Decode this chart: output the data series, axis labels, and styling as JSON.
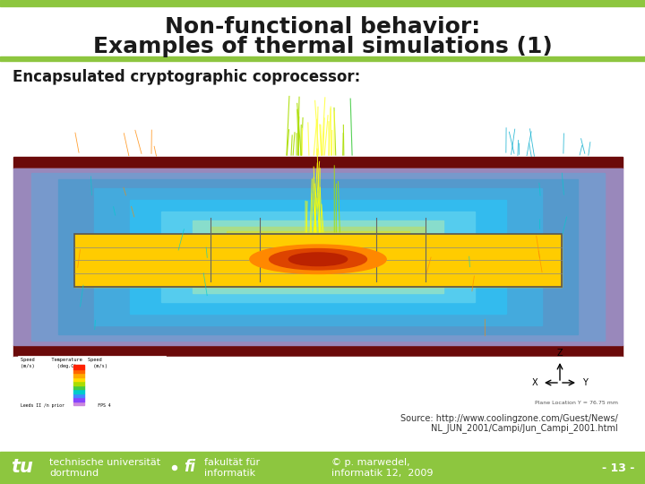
{
  "title_line1": "Non-functional behavior:",
  "title_line2": "Examples of thermal simulations (1)",
  "subtitle": "Encapsulated cryptographic coprocessor:",
  "source_line1": "Source: http://www.coolingzone.com/Guest/News/",
  "source_line2": "NL_JUN_2001/Campi/Jun_Campi_2001.html",
  "footer_left1": "technische universität",
  "footer_left2": "dortmund",
  "footer_mid1": "fakultät für",
  "footer_mid2": "informatik",
  "footer_right1": "© p. marwedel,",
  "footer_right2": "informatik 12,  2009",
  "footer_page": "- 13 -",
  "bg_color": "#ffffff",
  "title_color": "#1a1a1a",
  "green_bar_color": "#8dc63f",
  "title_fontsize": 18,
  "subtitle_fontsize": 12,
  "footer_fontsize": 8,
  "source_fontsize": 7
}
